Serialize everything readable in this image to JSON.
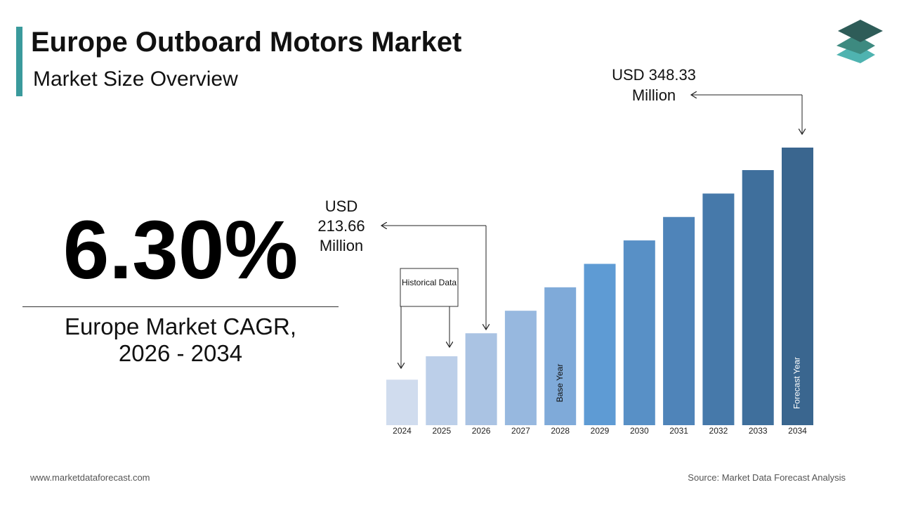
{
  "header": {
    "title": "Europe Outboard Motors Market",
    "subtitle": "Market Size Overview"
  },
  "cagr": {
    "value_text": "6.30%",
    "label": "Europe Market CAGR, 2026 - 2034"
  },
  "chart_data": {
    "type": "bar",
    "categories": [
      "2024",
      "2025",
      "2026",
      "2027",
      "2028",
      "2029",
      "2030",
      "2031",
      "2032",
      "2033",
      "2034"
    ],
    "values": [
      180,
      197,
      213.66,
      230,
      247,
      264,
      281,
      298,
      315,
      332,
      348.33
    ],
    "value_labels": [
      null,
      null,
      "USD 213.66 Million",
      null,
      null,
      null,
      null,
      null,
      null,
      null,
      "USD 348.33 Million"
    ],
    "bar_labels": [
      null,
      null,
      null,
      null,
      "Base Year",
      null,
      null,
      null,
      null,
      null,
      "Forecast Year"
    ],
    "colors": [
      "#d0dcee",
      "#bccfe9",
      "#aac3e3",
      "#97b8df",
      "#7faad9",
      "#5e9bd4",
      "#5890c6",
      "#4f84b9",
      "#4679aa",
      "#3f6f9c",
      "#3a668f"
    ],
    "ylim": [
      147,
      348.33
    ],
    "historical_note": "Historical Data"
  },
  "footer": {
    "website": "www.marketdataforecast.com",
    "source": "Source: Market Data Forecast Analysis"
  }
}
